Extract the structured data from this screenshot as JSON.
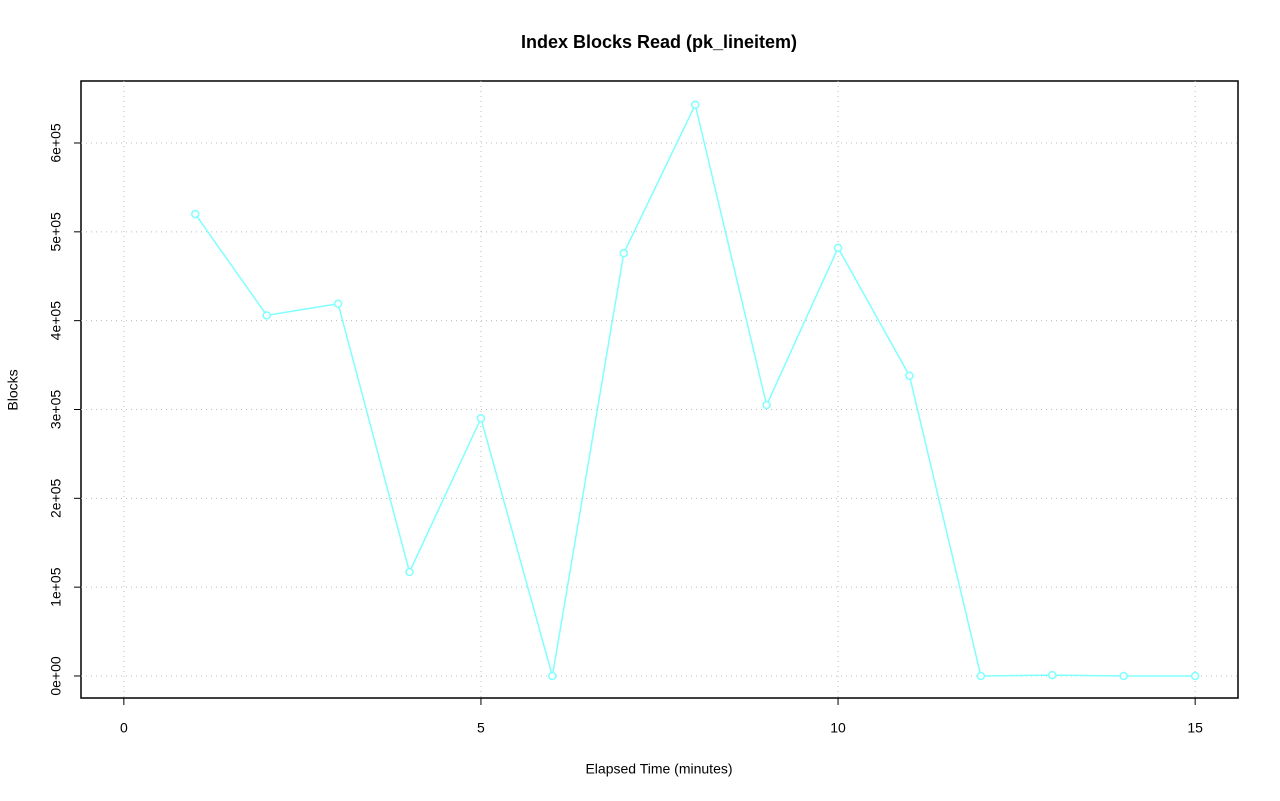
{
  "chart_data": {
    "type": "line",
    "title": "Index Blocks Read (pk_lineitem)",
    "x_label": "Elapsed Time (minutes)",
    "y_label": "Blocks",
    "x": [
      1,
      2,
      3,
      4,
      5,
      6,
      7,
      8,
      9,
      10,
      11,
      12,
      13,
      14,
      15
    ],
    "values": [
      520000,
      406000,
      419000,
      117000,
      290000,
      0,
      476000,
      643000,
      305000,
      482000,
      338000,
      0,
      1000,
      0,
      0
    ],
    "color": "#80ffff",
    "xlim": [
      -0.6,
      15.6
    ],
    "xticks": [
      0,
      5,
      10,
      15
    ],
    "ylim": [
      -24800,
      669800
    ],
    "yticks": [
      {
        "value": 0,
        "label": "0e+00"
      },
      {
        "value": 100000,
        "label": "1e+05"
      },
      {
        "value": 200000,
        "label": "2e+05"
      },
      {
        "value": 300000,
        "label": "3e+05"
      },
      {
        "value": 400000,
        "label": "4e+05"
      },
      {
        "value": 500000,
        "label": "5e+05"
      },
      {
        "value": 600000,
        "label": "6e+05"
      }
    ],
    "grid": true
  }
}
